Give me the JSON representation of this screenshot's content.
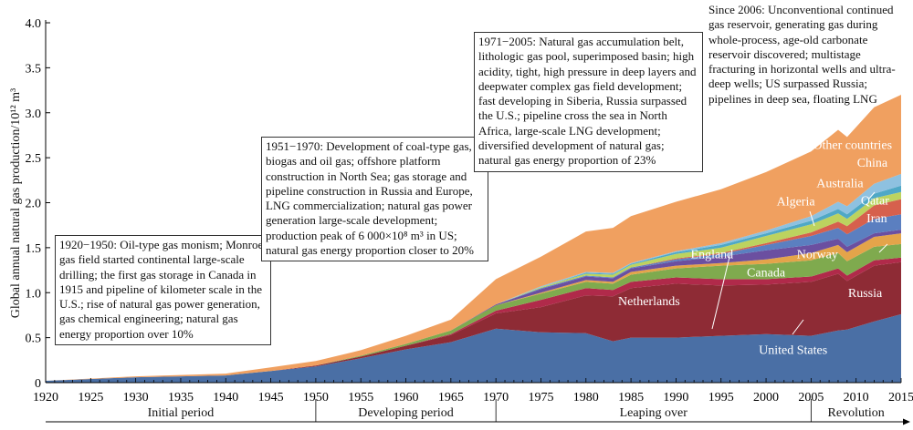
{
  "chart_data": {
    "type": "area",
    "ylabel": "Global annual natural gas production/10¹² m³",
    "xlabel": "",
    "xlim": [
      1920,
      2015
    ],
    "ylim": [
      0,
      4.0
    ],
    "xticks": [
      1920,
      1925,
      1930,
      1935,
      1940,
      1945,
      1950,
      1955,
      1960,
      1965,
      1970,
      1975,
      1980,
      1985,
      1990,
      1995,
      2000,
      2005,
      2010,
      2015
    ],
    "yticks": [
      "0",
      "0.5",
      "1.0",
      "1.5",
      "2.0",
      "2.5",
      "3.0",
      "3.5",
      "4.0"
    ],
    "x": [
      1920,
      1930,
      1940,
      1945,
      1950,
      1955,
      1960,
      1965,
      1970,
      1975,
      1980,
      1983,
      1985,
      1990,
      1995,
      2000,
      2005,
      2008,
      2009,
      2012,
      2015
    ],
    "series": [
      {
        "name": "United States",
        "color": "#4a6fa5",
        "values": [
          0.02,
          0.06,
          0.08,
          0.13,
          0.18,
          0.27,
          0.37,
          0.45,
          0.6,
          0.56,
          0.55,
          0.46,
          0.5,
          0.5,
          0.52,
          0.54,
          0.52,
          0.58,
          0.59,
          0.68,
          0.76
        ]
      },
      {
        "name": "Russia",
        "color": "#8e2b35",
        "values": [
          0,
          0,
          0,
          0,
          0.01,
          0.02,
          0.04,
          0.08,
          0.17,
          0.28,
          0.42,
          0.5,
          0.55,
          0.6,
          0.56,
          0.55,
          0.6,
          0.63,
          0.54,
          0.62,
          0.58
        ]
      },
      {
        "name": "Netherlands",
        "color": "#b02a4a",
        "values": [
          0,
          0,
          0,
          0,
          0,
          0,
          0,
          0.01,
          0.03,
          0.08,
          0.08,
          0.07,
          0.07,
          0.07,
          0.07,
          0.06,
          0.06,
          0.06,
          0.06,
          0.06,
          0.05
        ]
      },
      {
        "name": "Canada",
        "color": "#7faa4e",
        "values": [
          0,
          0,
          0,
          0,
          0,
          0.01,
          0.02,
          0.04,
          0.06,
          0.07,
          0.07,
          0.07,
          0.08,
          0.1,
          0.15,
          0.17,
          0.18,
          0.17,
          0.16,
          0.15,
          0.15
        ]
      },
      {
        "name": "Norway",
        "color": "#e4a44a",
        "values": [
          0,
          0,
          0,
          0,
          0,
          0,
          0,
          0,
          0,
          0.01,
          0.02,
          0.02,
          0.03,
          0.03,
          0.03,
          0.05,
          0.08,
          0.09,
          0.1,
          0.11,
          0.12
        ]
      },
      {
        "name": "England",
        "color": "#6b4fa0",
        "values": [
          0,
          0,
          0,
          0,
          0,
          0,
          0,
          0,
          0.01,
          0.04,
          0.04,
          0.04,
          0.04,
          0.05,
          0.07,
          0.1,
          0.09,
          0.07,
          0.06,
          0.04,
          0.04
        ]
      },
      {
        "name": "Iran",
        "color": "#5b7fc0",
        "values": [
          0,
          0,
          0,
          0,
          0,
          0,
          0,
          0,
          0,
          0.01,
          0.01,
          0.01,
          0.01,
          0.02,
          0.03,
          0.06,
          0.1,
          0.12,
          0.14,
          0.16,
          0.17
        ]
      },
      {
        "name": "Qatar",
        "color": "#d6604d",
        "values": [
          0,
          0,
          0,
          0,
          0,
          0,
          0,
          0,
          0,
          0,
          0,
          0,
          0,
          0.01,
          0.01,
          0.02,
          0.04,
          0.07,
          0.09,
          0.15,
          0.17
        ]
      },
      {
        "name": "Algeria",
        "color": "#bcd35f",
        "values": [
          0,
          0,
          0,
          0,
          0,
          0,
          0,
          0,
          0,
          0.01,
          0.02,
          0.03,
          0.03,
          0.05,
          0.06,
          0.08,
          0.09,
          0.09,
          0.08,
          0.08,
          0.08
        ]
      },
      {
        "name": "Australia",
        "color": "#4fa8c6",
        "values": [
          0,
          0,
          0,
          0,
          0,
          0,
          0,
          0,
          0,
          0,
          0.01,
          0.01,
          0.01,
          0.02,
          0.03,
          0.03,
          0.04,
          0.05,
          0.05,
          0.05,
          0.07
        ]
      },
      {
        "name": "China",
        "color": "#8ec1e0",
        "values": [
          0,
          0,
          0,
          0,
          0,
          0,
          0,
          0,
          0,
          0.01,
          0.01,
          0.01,
          0.01,
          0.01,
          0.02,
          0.03,
          0.05,
          0.08,
          0.09,
          0.11,
          0.13
        ]
      },
      {
        "name": "Other countries",
        "color": "#f0a060",
        "values": [
          0,
          0.01,
          0.02,
          0.04,
          0.05,
          0.06,
          0.09,
          0.12,
          0.28,
          0.33,
          0.45,
          0.5,
          0.52,
          0.55,
          0.6,
          0.65,
          0.72,
          0.8,
          0.77,
          0.85,
          0.88
        ]
      }
    ],
    "series_labels": [
      {
        "text": "United States",
        "x": 2003,
        "y": 0.32,
        "color": "#ffffff"
      },
      {
        "text": "Russia",
        "x": 2011,
        "y": 0.95,
        "color": "#ffffff"
      },
      {
        "text": "Netherlands",
        "x": 1987,
        "y": 0.86,
        "color": "#ffffff"
      },
      {
        "text": "Canada",
        "x": 2000,
        "y": 1.18,
        "color": "#ffffff"
      },
      {
        "text": "Norway",
        "x": 2005.7,
        "y": 1.38,
        "color": "#ffffff"
      },
      {
        "text": "England",
        "x": 1994,
        "y": 1.38,
        "color": "#ffffff"
      },
      {
        "text": "Iran",
        "x": 2012.3,
        "y": 1.78,
        "color": "#ffffff"
      },
      {
        "text": "Qatar",
        "x": 2012.1,
        "y": 1.98,
        "color": "#ffffff"
      },
      {
        "text": "Algeria",
        "x": 2003.3,
        "y": 1.97,
        "color": "#ffffff"
      },
      {
        "text": "Australia",
        "x": 2008.2,
        "y": 2.17,
        "color": "#ffffff"
      },
      {
        "text": "China",
        "x": 2011.8,
        "y": 2.4,
        "color": "#ffffff"
      },
      {
        "text": "Other countries",
        "x": 2009.6,
        "y": 2.6,
        "color": "#ffffff"
      }
    ],
    "grid": false,
    "legend": "none",
    "periods": [
      {
        "label": "Initial period",
        "start": 1920,
        "end": 1950
      },
      {
        "label": "Developing period",
        "start": 1950,
        "end": 1970
      },
      {
        "label": "Leaping over",
        "start": 1970,
        "end": 2005
      },
      {
        "label": "Revolution",
        "start": 2005,
        "end": 2015
      }
    ],
    "annotations": [
      {
        "id": "a1",
        "text": "1920−1950: Oil-type gas monism; Monroe gas field started continental large-scale drilling; the first gas storage in Canada in 1915 and pipeline of kilometer scale in the U.S.; rise of natural gas power generation, gas chemical engineering; natural gas energy proportion over 10%"
      },
      {
        "id": "a2",
        "text": "1951−1970: Development of coal-type gas, biogas and oil gas; offshore platform construction in North Sea; gas storage and pipeline construction in Russia and Europe, LNG commercialization; natural gas power generation large-scale development; production peak of 6 000×10⁸ m³ in US; natural gas energy proportion closer to 20%"
      },
      {
        "id": "a3",
        "text": "1971−2005: Natural gas accumulation belt, lithologic gas pool, superimposed basin; high acidity, tight, high pressure in deep layers and deepwater complex gas field development; fast developing in Siberia, Russia surpassed the U.S.; pipeline cross the sea in North Africa, large-scale LNG development; diversified development of natural gas; natural gas energy proportion of 23%"
      },
      {
        "id": "a4",
        "text": "Since 2006: Unconventional continued gas reservoir, generating gas during whole-process, age-old carbonate reservoir discovered; multistage fracturing in horizontal wells and ultra-deep wells; US surpassed Russia; pipelines in deep sea, floating LNG"
      }
    ]
  }
}
